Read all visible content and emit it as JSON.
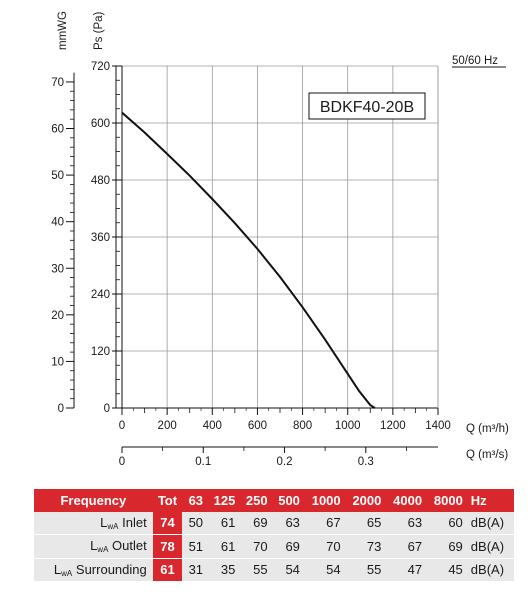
{
  "chart_data": {
    "type": "line",
    "model": "BDKF40-20B",
    "frequency_note": "50/60 Hz",
    "left_axis_label": "mmWG",
    "y_label": "Ps (Pa)",
    "x_label": "Q (m³/h)",
    "x2_label": "Q (m³/s)",
    "xlim": [
      0,
      1400
    ],
    "ylim": [
      0,
      720
    ],
    "x_ticks": [
      0,
      200,
      400,
      600,
      800,
      1000,
      1200,
      1400
    ],
    "y_ticks": [
      0,
      120,
      240,
      360,
      480,
      600,
      720
    ],
    "mmwg_ticks": [
      0,
      10,
      20,
      30,
      40,
      50,
      60,
      70
    ],
    "x2_ticks": [
      "0",
      "0.1",
      "0.2",
      "0.3"
    ],
    "grid": true,
    "series": [
      {
        "x": [
          0,
          100,
          200,
          300,
          400,
          500,
          600,
          700,
          800,
          900,
          1000,
          1050,
          1100,
          1120
        ],
        "y": [
          622,
          580,
          535,
          489,
          440,
          389,
          335,
          276,
          212,
          144,
          72,
          36,
          6,
          0
        ]
      }
    ]
  },
  "table": {
    "header": {
      "frequency": "Frequency",
      "tot": "Tot",
      "bands": [
        "63",
        "125",
        "250",
        "500",
        "1000",
        "2000",
        "4000",
        "8000"
      ],
      "unit": "Hz"
    },
    "rows": [
      {
        "label": "Inlet",
        "tot": "74",
        "values": [
          "50",
          "61",
          "69",
          "63",
          "67",
          "65",
          "63",
          "60"
        ],
        "unit": "dB(A)"
      },
      {
        "label": "Outlet",
        "tot": "78",
        "values": [
          "51",
          "61",
          "70",
          "69",
          "70",
          "73",
          "67",
          "69"
        ],
        "unit": "dB(A)"
      },
      {
        "label": "Surrounding",
        "tot": "61",
        "values": [
          "31",
          "35",
          "55",
          "54",
          "54",
          "55",
          "47",
          "45"
        ],
        "unit": "dB(A)"
      }
    ],
    "lwa": "L",
    "lwa_sub": "wA"
  }
}
